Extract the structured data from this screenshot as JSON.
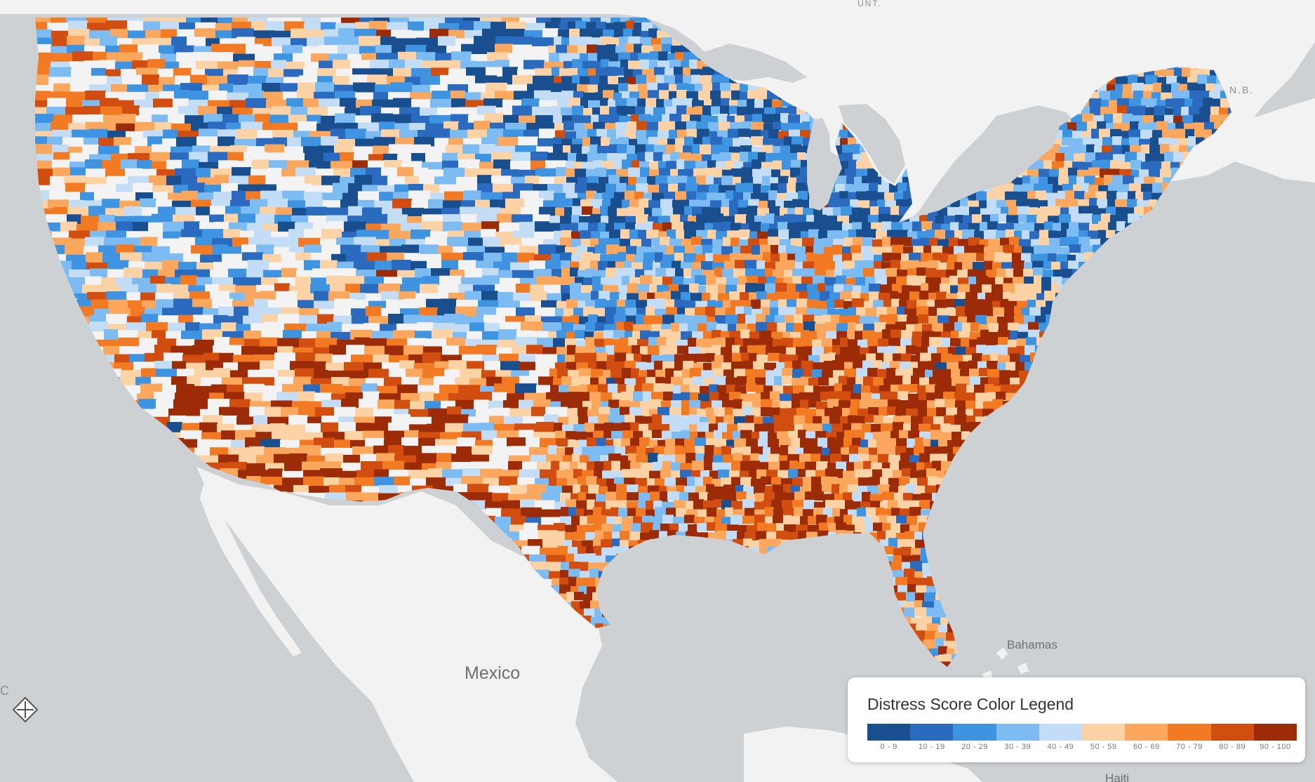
{
  "map": {
    "labels": {
      "mexico": "Mexico",
      "bahamas": "Bahamas",
      "haiti": "Haiti",
      "nb": "N.B.",
      "unt": "UNT.",
      "left_edge": "C"
    },
    "colors": {
      "land": "#f2f2f2",
      "water": "#cdd1d3",
      "us_background": "#f5f5f5"
    },
    "score_palette": [
      "#1a4f8f",
      "#2a6bbf",
      "#3f94e2",
      "#7cbcf2",
      "#c3ddf7",
      "#fdd2a5",
      "#fba75e",
      "#f27a22",
      "#d14d10",
      "#9c2b07"
    ],
    "regional_distress": {
      "pacific_northwest": 55,
      "northern_rockies": 40,
      "great_basin": 45,
      "california": 55,
      "southwest": 82,
      "northern_plains": 30,
      "central_plains": 40,
      "texas": 68,
      "upper_midwest": 24,
      "lower_midwest": 52,
      "appalachia": 86,
      "deep_south": 80,
      "florida": 60,
      "northeast": 28,
      "mid_atlantic": 25,
      "new_england": 35
    }
  },
  "compass": {
    "icon": "compass-icon"
  },
  "legend": {
    "title": "Distress Score Color Legend",
    "bins": [
      {
        "label": "0 - 9",
        "color": "#1a4f8f"
      },
      {
        "label": "10 - 19",
        "color": "#2a6bbf"
      },
      {
        "label": "20 - 29",
        "color": "#3f94e2"
      },
      {
        "label": "30 - 39",
        "color": "#7cbcf2"
      },
      {
        "label": "40 - 49",
        "color": "#c3ddf7"
      },
      {
        "label": "50 - 59",
        "color": "#fdd2a5"
      },
      {
        "label": "60 - 69",
        "color": "#fba75e"
      },
      {
        "label": "70 - 79",
        "color": "#f27a22"
      },
      {
        "label": "80 - 89",
        "color": "#d14d10"
      },
      {
        "label": "90 - 100",
        "color": "#9c2b07"
      }
    ]
  }
}
